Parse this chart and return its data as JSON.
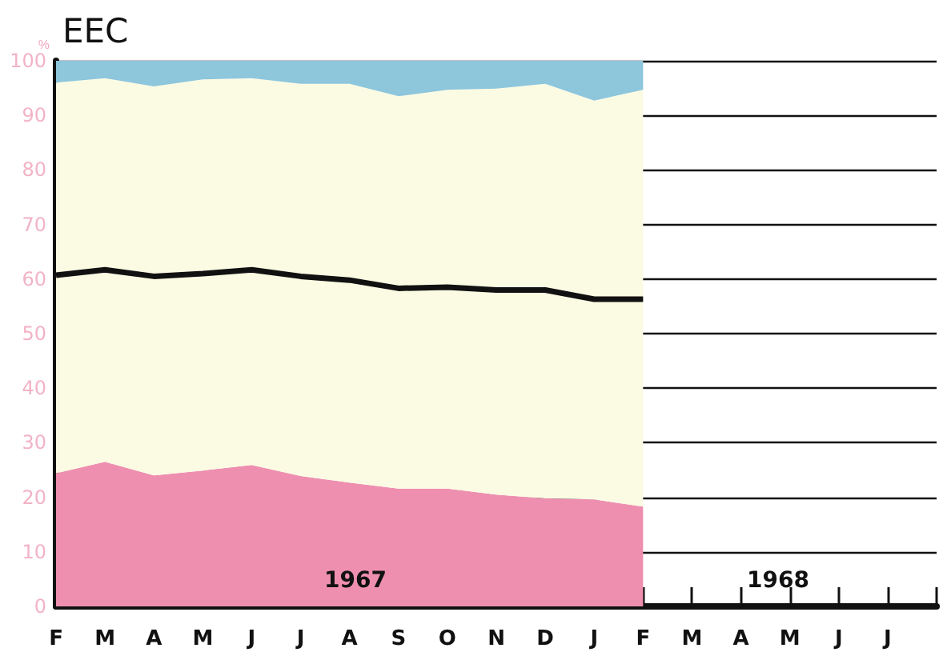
{
  "chart_data": {
    "type": "area",
    "title": "EEC",
    "ylabel": "%",
    "stacked": true,
    "grid": "y",
    "marker": "none",
    "categories": [
      "F",
      "M",
      "A",
      "M",
      "J",
      "J",
      "A",
      "S",
      "O",
      "N",
      "D",
      "J",
      "F",
      "M",
      "A",
      "M",
      "J",
      "J",
      null
    ],
    "series": [
      {
        "color": "#ee8fb0",
        "values": [
          24.4,
          26.5,
          24,
          24.9,
          25.9,
          23.9,
          22.7,
          21.6,
          21.6,
          20.5,
          19.8,
          19.6,
          18.3,
          null,
          null,
          null,
          null,
          null,
          null
        ]
      },
      {
        "color": "#fbfbe3",
        "values": [
          71.6,
          70.3,
          71.3,
          71.7,
          70.9,
          71.9,
          73.1,
          71.9,
          73.1,
          74.4,
          76,
          73.1,
          76.4,
          null,
          null,
          null,
          null,
          null,
          null
        ]
      },
      {
        "color": "#8ec6dc",
        "values": [
          4,
          3.2,
          4.7,
          3.4,
          3.2,
          4.2,
          4.2,
          6.5,
          5.3,
          5.1,
          4.2,
          7.3,
          5.3,
          null,
          null,
          null,
          null,
          null,
          null
        ]
      },
      {
        "type": "line",
        "color": "#111111",
        "values": [
          60.7,
          61.7,
          60.5,
          61,
          61.7,
          60.5,
          59.8,
          58.3,
          58.5,
          58,
          58,
          56.3,
          56.3,
          null,
          null,
          null,
          null,
          null,
          null
        ]
      }
    ],
    "ylim": [
      0,
      100
    ],
    "yticks": [
      0,
      10,
      20,
      30,
      40,
      50,
      60,
      70,
      80,
      90,
      100
    ],
    "annotations": [
      "1967",
      "1968"
    ]
  }
}
